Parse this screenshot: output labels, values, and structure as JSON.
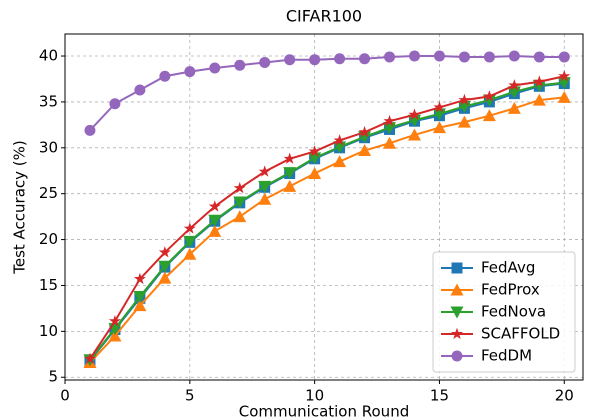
{
  "chart_data": {
    "type": "line",
    "title": "CIFAR100",
    "xlabel": "Communication Round",
    "ylabel": "Test Accuracy (%)",
    "x": [
      1,
      2,
      3,
      4,
      5,
      6,
      7,
      8,
      9,
      10,
      11,
      12,
      13,
      14,
      15,
      16,
      17,
      18,
      19,
      20
    ],
    "xlim": [
      0,
      20.75
    ],
    "xticks": [
      0,
      5,
      10,
      15,
      20
    ],
    "ylim": [
      4.7,
      42.4
    ],
    "yticks": [
      5,
      10,
      15,
      20,
      25,
      30,
      35,
      40
    ],
    "grid": true,
    "legend": "lower right",
    "series": [
      {
        "name": "FedAvg",
        "color": "#1f77b4",
        "marker": "square",
        "values": [
          6.8,
          10.2,
          13.6,
          17.0,
          19.7,
          22.0,
          24.0,
          25.7,
          27.2,
          28.8,
          30.0,
          31.1,
          32.0,
          32.9,
          33.5,
          34.3,
          35.0,
          35.9,
          36.7,
          37.0
        ]
      },
      {
        "name": "FedProx",
        "color": "#ff7f0e",
        "marker": "triangle-up",
        "values": [
          6.6,
          9.5,
          12.8,
          15.8,
          18.4,
          20.9,
          22.5,
          24.4,
          25.8,
          27.2,
          28.5,
          29.7,
          30.5,
          31.4,
          32.2,
          32.8,
          33.5,
          34.3,
          35.2,
          35.5
        ]
      },
      {
        "name": "FedNova",
        "color": "#2ca02c",
        "marker": "triangle-down",
        "values": [
          6.9,
          10.3,
          13.8,
          17.1,
          19.8,
          22.1,
          24.1,
          25.8,
          27.3,
          28.9,
          30.1,
          31.2,
          32.2,
          33.0,
          33.7,
          34.5,
          35.2,
          36.1,
          36.8,
          37.1
        ]
      },
      {
        "name": "SCAFFOLD",
        "color": "#d62728",
        "marker": "star",
        "values": [
          7.0,
          11.1,
          15.7,
          18.6,
          21.2,
          23.6,
          25.6,
          27.4,
          28.8,
          29.6,
          30.8,
          31.7,
          32.9,
          33.6,
          34.4,
          35.2,
          35.6,
          36.8,
          37.2,
          37.8
        ]
      },
      {
        "name": "FedDM",
        "color": "#9467bd",
        "marker": "circle",
        "values": [
          31.9,
          34.8,
          36.3,
          37.8,
          38.3,
          38.7,
          39.0,
          39.3,
          39.6,
          39.6,
          39.7,
          39.7,
          39.9,
          40.0,
          40.0,
          39.9,
          39.9,
          40.0,
          39.9,
          39.9
        ]
      }
    ]
  }
}
